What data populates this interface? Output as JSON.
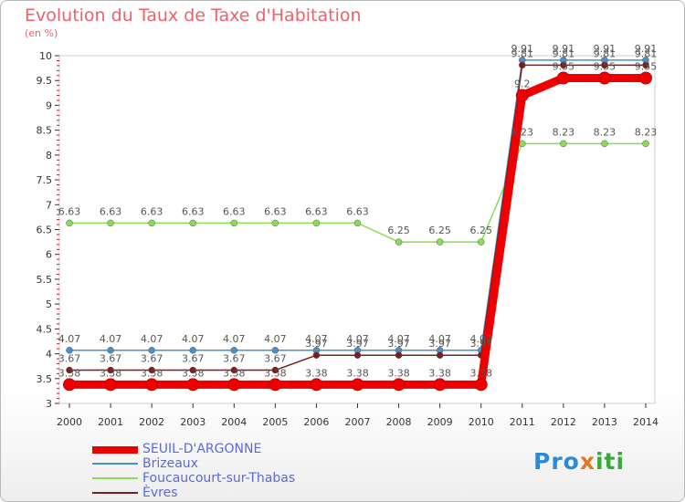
{
  "chart_data": {
    "type": "line",
    "title": "Evolution du Taux de Taxe d'Habitation",
    "ylabel": "(en %)",
    "xlabel": "",
    "x": [
      "2000",
      "2001",
      "2002",
      "2003",
      "2004",
      "2005",
      "2006",
      "2007",
      "2008",
      "2009",
      "2010",
      "2011",
      "2012",
      "2013",
      "2014"
    ],
    "ylim": [
      3,
      10
    ],
    "yticks": [
      "3",
      "3.5",
      "4",
      "4.5",
      "5",
      "5.5",
      "6",
      "6.5",
      "7",
      "7.5",
      "8",
      "8.5",
      "9",
      "9.5",
      "10"
    ],
    "series": [
      {
        "name": "Foucaucourt-sur-Thabas",
        "color": "#88dd55",
        "values": [
          6.63,
          6.63,
          6.63,
          6.63,
          6.63,
          6.63,
          6.63,
          6.63,
          6.25,
          6.25,
          6.25,
          8.23,
          8.23,
          8.23,
          8.23
        ],
        "labels": [
          "6.63",
          "6.63",
          "6.63",
          "6.63",
          "6.63",
          "6.63",
          "6.63",
          "6.63",
          "6.25",
          "6.25",
          "6.25",
          "8.23",
          "8.23",
          "8.23",
          "8.23"
        ]
      },
      {
        "name": "Brizeaux",
        "color": "#4a90d0",
        "values": [
          4.07,
          4.07,
          4.07,
          4.07,
          4.07,
          4.07,
          4.07,
          4.07,
          4.07,
          4.07,
          4.07,
          9.91,
          9.91,
          9.91,
          9.91
        ],
        "labels": [
          "4.07",
          "4.07",
          "4.07",
          "4.07",
          "4.07",
          "4.07",
          "4.07",
          "4.07",
          "4.07",
          "4.07",
          "4.07",
          "9.91",
          "9.91",
          "9.91",
          "9.91"
        ]
      },
      {
        "name": "Èvres",
        "color": "#7a1d1d",
        "values": [
          3.67,
          3.67,
          3.67,
          3.67,
          3.67,
          3.67,
          3.97,
          3.97,
          3.97,
          3.97,
          3.97,
          9.81,
          9.81,
          9.81,
          9.81
        ],
        "labels": [
          "3.67",
          "3.67",
          "3.67",
          "3.67",
          "3.67",
          "3.67",
          "3.97",
          "3.97",
          "3.97",
          "3.97",
          "3.97",
          "9.81",
          "9.81",
          "9.81",
          "9.81"
        ]
      },
      {
        "name": "SEUIL-D'ARGONNE",
        "color": "#ee0000",
        "values": [
          3.38,
          3.38,
          3.38,
          3.38,
          3.38,
          3.38,
          3.38,
          3.38,
          3.38,
          3.38,
          3.38,
          9.2,
          9.55,
          9.55,
          9.55
        ],
        "labels": [
          "3.38",
          "3.38",
          "3.38",
          "3.38",
          "3.38",
          "3.38",
          "3.38",
          "3.38",
          "3.38",
          "3.38",
          "3.38",
          "9.2",
          "9.55",
          "9.55",
          "9.55"
        ]
      }
    ],
    "legend": [
      "SEUIL-D'ARGONNE",
      "Brizeaux",
      "Foucaucourt-sur-Thabas",
      "Èvres"
    ],
    "legend_colors": [
      "#ee0000",
      "#4a90d0",
      "#88dd55",
      "#7a1d1d"
    ]
  },
  "logo": {
    "p1": "Pro",
    "p2": "x",
    "p3": "iti"
  }
}
